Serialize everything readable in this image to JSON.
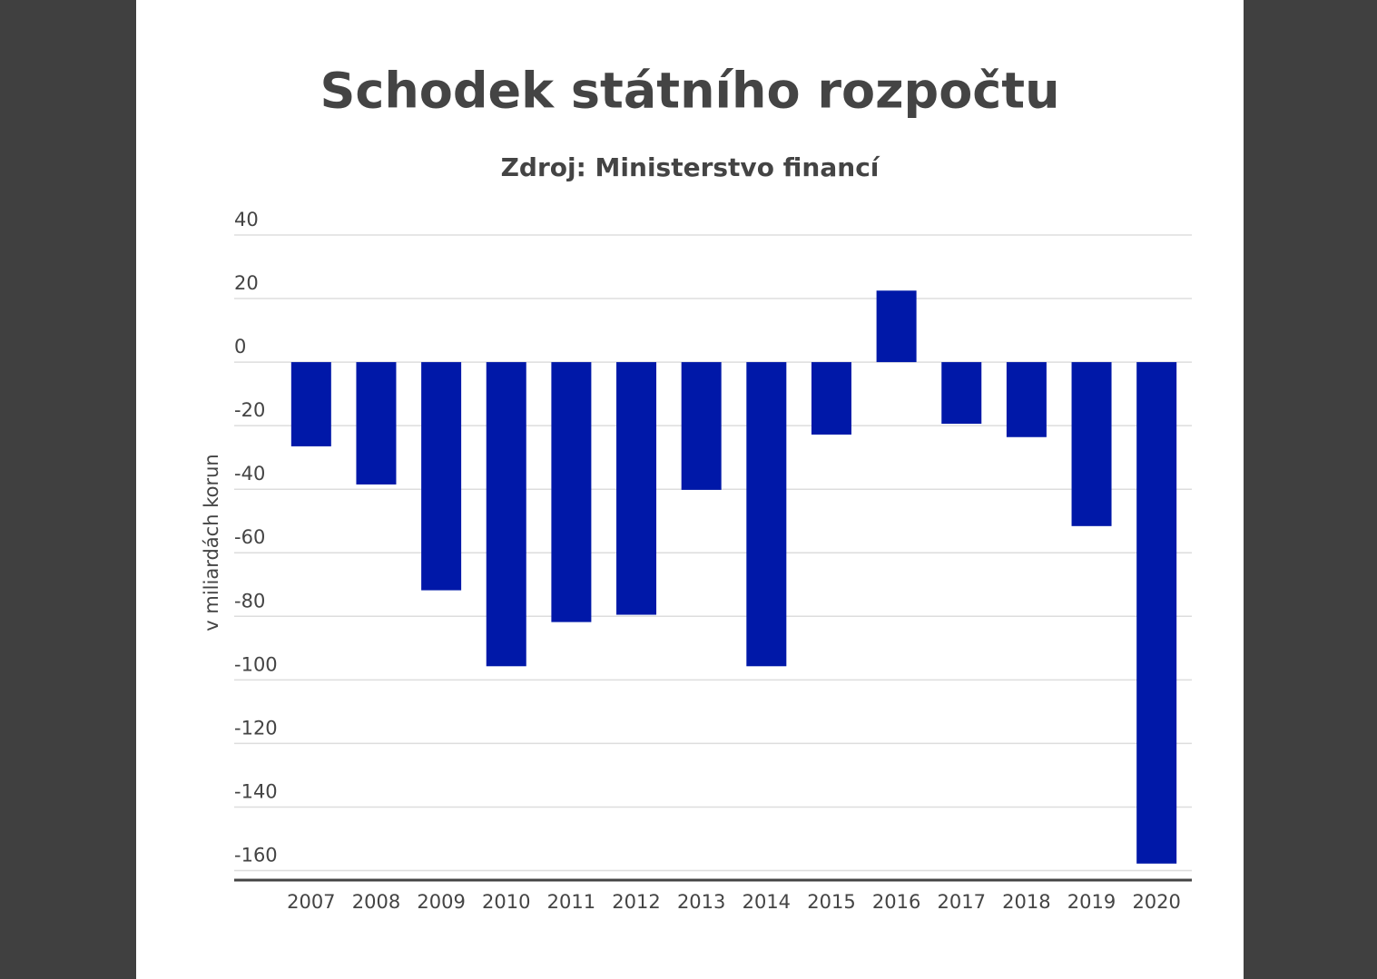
{
  "chart_data": {
    "type": "bar",
    "title": "Schodek státního rozpočtu",
    "subtitle": "Zdroj: Ministerstvo financí",
    "y_label": "v miliardách korun",
    "categories": [
      "2007",
      "2008",
      "2009",
      "2010",
      "2011",
      "2012",
      "2013",
      "2014",
      "2015",
      "2016",
      "2017",
      "2018",
      "2019",
      "2020"
    ],
    "values": [
      -26.5,
      -38.5,
      -71.8,
      -95.7,
      -81.8,
      -79.5,
      -40.2,
      -95.7,
      -22.8,
      22.5,
      -19.4,
      -23.6,
      -51.6,
      -157.8
    ],
    "color": "#0018a8",
    "ylim": [
      -163,
      40
    ],
    "yticks": [
      40,
      20,
      0,
      -20,
      -40,
      -60,
      -80,
      -100,
      -120,
      -140,
      -160
    ],
    "grid": true
  }
}
